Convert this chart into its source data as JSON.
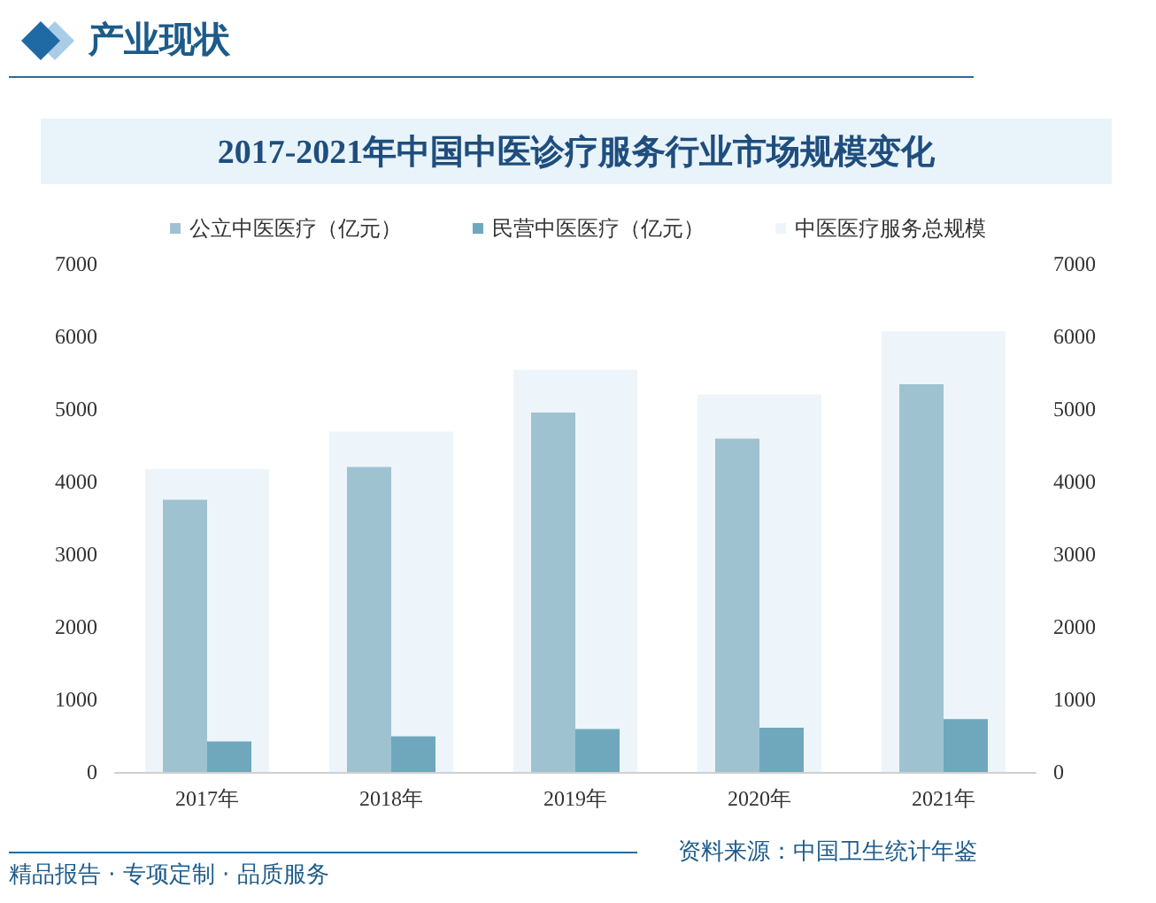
{
  "chart_data": {
    "type": "bar",
    "title": "2017-2021年中国中医诊疗服务行业市场规模变化",
    "categories": [
      "2017年",
      "2018年",
      "2019年",
      "2020年",
      "2021年"
    ],
    "series": [
      {
        "name": "公立中医医疗（亿元）",
        "color": "#9fc2d0",
        "values": [
          3750,
          4200,
          4950,
          4590,
          5340
        ]
      },
      {
        "name": "民营中医医疗（亿元）",
        "color": "#6fa8bc",
        "values": [
          420,
          490,
          590,
          610,
          730
        ]
      },
      {
        "name": "中医医疗服务总规模",
        "color": "#edf5fa",
        "values": [
          4170,
          4690,
          5540,
          5200,
          6070
        ]
      }
    ],
    "ylim": [
      0,
      7000
    ],
    "yticks": [
      0,
      1000,
      2000,
      3000,
      4000,
      5000,
      6000,
      7000
    ],
    "y2lim": [
      0,
      7000
    ],
    "y2ticks": [
      0,
      1000,
      2000,
      3000,
      4000,
      5000,
      6000,
      7000
    ],
    "grid": false,
    "legend": "top",
    "annotations": [
      "产业现状",
      "资料来源：中国卫生统计年鉴",
      "精品报告 · 专项定制 · 品质服务"
    ]
  }
}
